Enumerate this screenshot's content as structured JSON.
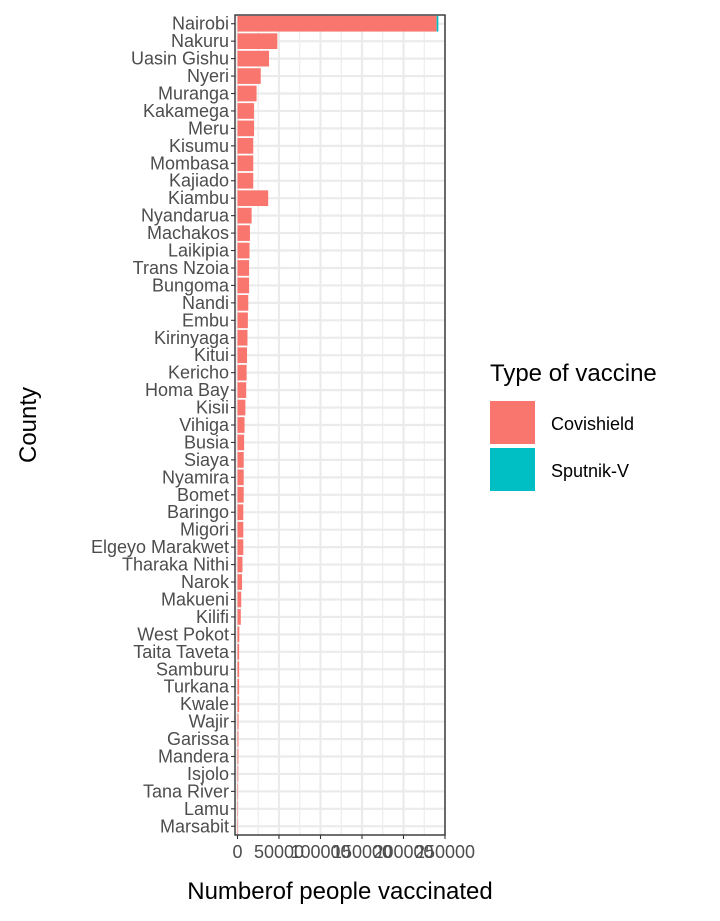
{
  "chart_data": {
    "type": "bar",
    "orientation": "horizontal",
    "xlabel": "Numberof people vaccinated",
    "ylabel": "County",
    "xlim": [
      -3000,
      250000
    ],
    "xticks": [
      0,
      50000,
      100000,
      150000,
      200000,
      250000
    ],
    "xtick_labels": [
      "0",
      "50000",
      "100000",
      "150000",
      "200000",
      "250000"
    ],
    "grid": true,
    "legend": {
      "title": "Type of vaccine",
      "position": "right",
      "entries": [
        {
          "name": "Covishield",
          "color": "#F8766D"
        },
        {
          "name": "Sputnik-V",
          "color": "#00BFC4"
        }
      ]
    },
    "categories": [
      "Nairobi",
      "Nakuru",
      "Uasin Gishu",
      "Nyeri",
      "Muranga",
      "Kakamega",
      "Meru",
      "Kisumu",
      "Mombasa",
      "Kajiado",
      "Kiambu",
      "Nyandarua",
      "Machakos",
      "Laikipia",
      "Trans Nzoia",
      "Bungoma",
      "Nandi",
      "Embu",
      "Kirinyaga",
      "Kitui",
      "Kericho",
      "Homa Bay",
      "Kisii",
      "Vihiga",
      "Busia",
      "Siaya",
      "Nyamira",
      "Bomet",
      "Baringo",
      "Migori",
      "Elgeyo Marakwet",
      "Tharaka Nithi",
      "Narok",
      "Makueni",
      "Kilifi",
      "West Pokot",
      "Taita Taveta",
      "Samburu",
      "Turkana",
      "Kwale",
      "Wajir",
      "Garissa",
      "Mandera",
      "Isjolo",
      "Tana River",
      "Lamu",
      "Marsabit"
    ],
    "series": [
      {
        "name": "Covishield",
        "color": "#F8766D",
        "values": [
          240000,
          48000,
          38000,
          28000,
          23000,
          20000,
          20000,
          19000,
          19000,
          19000,
          37000,
          17000,
          15000,
          14500,
          14000,
          14000,
          13000,
          12500,
          12000,
          11500,
          11000,
          10500,
          9500,
          8500,
          8000,
          7500,
          7500,
          7500,
          7000,
          7000,
          7000,
          6000,
          5500,
          4500,
          4000,
          2200,
          2000,
          2000,
          2000,
          2000,
          1300,
          1200,
          1100,
          900,
          700,
          500,
          400
        ]
      },
      {
        "name": "Sputnik-V",
        "color": "#00BFC4",
        "values": [
          2000,
          0,
          0,
          0,
          0,
          0,
          0,
          0,
          0,
          0,
          0,
          0,
          0,
          0,
          0,
          0,
          0,
          0,
          0,
          0,
          0,
          0,
          0,
          0,
          0,
          0,
          0,
          0,
          0,
          0,
          0,
          0,
          0,
          0,
          0,
          0,
          0,
          0,
          0,
          0,
          0,
          0,
          0,
          0,
          0,
          0,
          0
        ]
      }
    ]
  }
}
